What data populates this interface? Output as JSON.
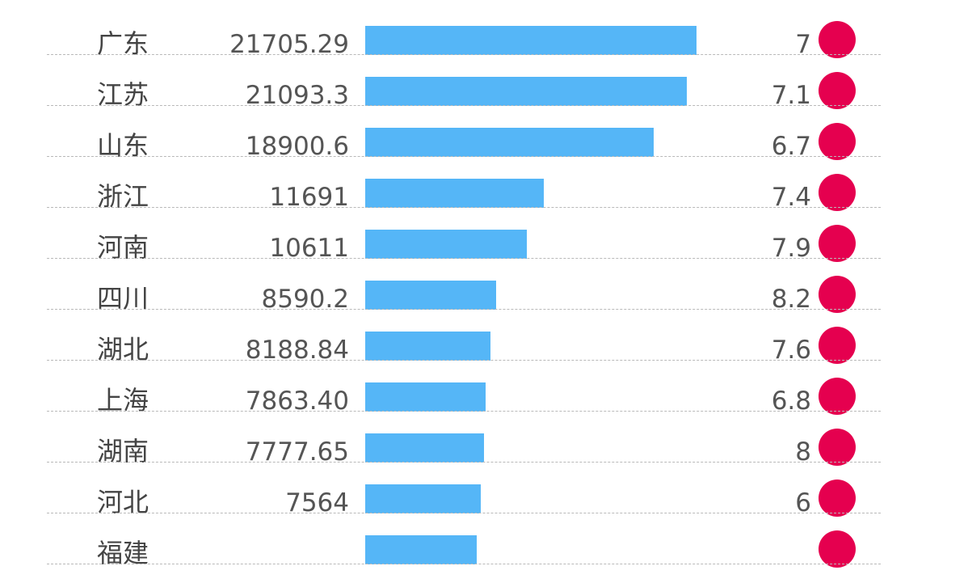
{
  "chart_data": {
    "type": "bar",
    "orientation": "horizontal",
    "title": "",
    "xlabel": "",
    "ylabel": "",
    "xlim": [
      0,
      21705.29
    ],
    "grid": false,
    "categories": [
      "广东",
      "江苏",
      "山东",
      "浙江",
      "河南",
      "四川",
      "湖北",
      "上海",
      "湖南",
      "河北",
      "福建"
    ],
    "value_labels": [
      "21705.29",
      "21093.3",
      "18900.6",
      "11691",
      "10611",
      "8590.2",
      "8188.84",
      "7863.40",
      "7777.65",
      "7564",
      ""
    ],
    "values": [
      21705.29,
      21093.3,
      18900.6,
      11691,
      10611,
      8590.2,
      8188.84,
      7863.4,
      7777.65,
      7564,
      7300
    ],
    "rate_labels": [
      "7",
      "7.1",
      "6.7",
      "7.4",
      "7.9",
      "8.2",
      "7.6",
      "6.8",
      "8",
      "6",
      ""
    ],
    "colors": {
      "bar": "#55b6f7",
      "dot": "#e5004f"
    }
  }
}
